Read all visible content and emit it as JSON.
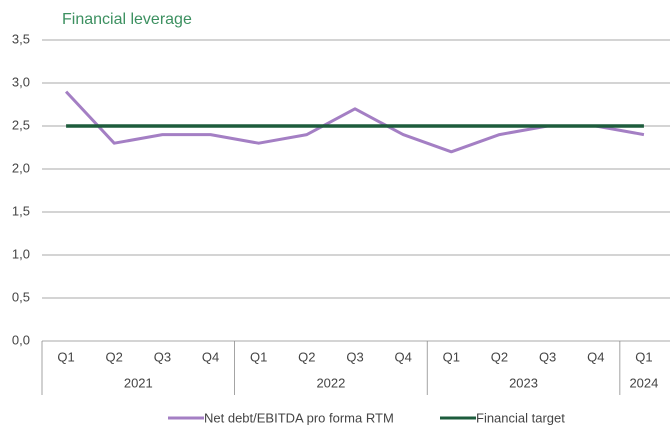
{
  "chart_data": {
    "type": "line",
    "title": "Financial leverage",
    "categories": [
      "Q1",
      "Q2",
      "Q3",
      "Q4",
      "Q1",
      "Q2",
      "Q3",
      "Q4",
      "Q1",
      "Q2",
      "Q3",
      "Q4",
      "Q1"
    ],
    "year_groups": [
      {
        "label": "2021",
        "count": 4
      },
      {
        "label": "2022",
        "count": 4
      },
      {
        "label": "2023",
        "count": 4
      },
      {
        "label": "2024",
        "count": 1
      }
    ],
    "series": [
      {
        "name": "Net debt/EBITDA pro forma RTM",
        "color": "#a47fc4",
        "values": [
          2.9,
          2.3,
          2.4,
          2.4,
          2.3,
          2.4,
          2.7,
          2.4,
          2.2,
          2.4,
          2.5,
          2.5,
          2.4
        ]
      },
      {
        "name": "Financial target",
        "color": "#1d5c3c",
        "values": [
          2.5,
          2.5,
          2.5,
          2.5,
          2.5,
          2.5,
          2.5,
          2.5,
          2.5,
          2.5,
          2.5,
          2.5,
          2.5
        ]
      }
    ],
    "ylim": [
      0,
      3.5
    ],
    "yticks": [
      {
        "value": 0,
        "label": "0,0"
      },
      {
        "value": 0.5,
        "label": "0,5"
      },
      {
        "value": 1,
        "label": "1,0"
      },
      {
        "value": 1.5,
        "label": "1,5"
      },
      {
        "value": 2,
        "label": "2,0"
      },
      {
        "value": 2.5,
        "label": "2,5"
      },
      {
        "value": 3,
        "label": "3,0"
      },
      {
        "value": 3.5,
        "label": "3,5"
      }
    ],
    "grid": true,
    "legend": "bottom"
  }
}
